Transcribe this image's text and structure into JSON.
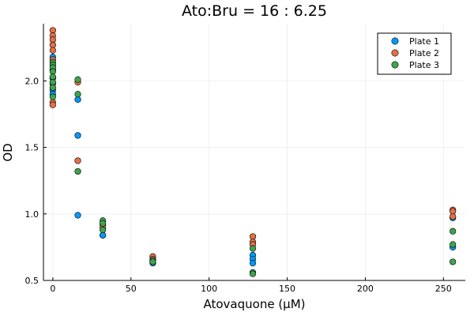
{
  "chart_data": {
    "type": "scatter",
    "title": "Ato:Bru = 16 : 6.25",
    "xlabel": "Atovaquone (µM)",
    "ylabel": "OD",
    "xlim": [
      -6,
      264
    ],
    "ylim": [
      0.5,
      2.43
    ],
    "xticks": [
      0,
      50,
      100,
      150,
      200,
      250
    ],
    "xtick_labels": [
      "0",
      "50",
      "100",
      "150",
      "200",
      "250"
    ],
    "yticks": [
      0.5,
      1.0,
      1.5,
      2.0
    ],
    "ytick_labels": [
      "0.5",
      "1.0",
      "1.5",
      "2.0"
    ],
    "grid": true,
    "legend_position": "top-right",
    "series": [
      {
        "name": "Plate 1",
        "color": "#009AFA",
        "points": [
          [
            0,
            2.18
          ],
          [
            0,
            2.08
          ],
          [
            0,
            2.02
          ],
          [
            0,
            1.98
          ],
          [
            0,
            1.93
          ],
          [
            0,
            1.9
          ],
          [
            16,
            1.86
          ],
          [
            16,
            1.59
          ],
          [
            16,
            0.99
          ],
          [
            32,
            0.84
          ],
          [
            32,
            0.84
          ],
          [
            64,
            0.63
          ],
          [
            64,
            0.64
          ],
          [
            128,
            0.69
          ],
          [
            128,
            0.66
          ],
          [
            128,
            0.63
          ],
          [
            256,
            0.97
          ],
          [
            256,
            0.75
          ]
        ]
      },
      {
        "name": "Plate 2",
        "color": "#E36F47",
        "points": [
          [
            0,
            2.38
          ],
          [
            0,
            2.34
          ],
          [
            0,
            2.31
          ],
          [
            0,
            2.27
          ],
          [
            0,
            2.23
          ],
          [
            0,
            2.16
          ],
          [
            0,
            1.84
          ],
          [
            0,
            1.82
          ],
          [
            16,
            1.99
          ],
          [
            16,
            1.4
          ],
          [
            32,
            0.92
          ],
          [
            32,
            0.9
          ],
          [
            64,
            0.68
          ],
          [
            64,
            0.66
          ],
          [
            128,
            0.83
          ],
          [
            128,
            0.79
          ],
          [
            128,
            0.77
          ],
          [
            256,
            1.03
          ],
          [
            256,
            1.02
          ],
          [
            256,
            0.98
          ]
        ]
      },
      {
        "name": "Plate 3",
        "color": "#3EA44E",
        "points": [
          [
            0,
            2.14
          ],
          [
            0,
            2.12
          ],
          [
            0,
            2.1
          ],
          [
            0,
            2.07
          ],
          [
            0,
            2.03
          ],
          [
            0,
            1.99
          ],
          [
            0,
            1.95
          ],
          [
            0,
            1.88
          ],
          [
            16,
            2.01
          ],
          [
            16,
            1.9
          ],
          [
            16,
            1.32
          ],
          [
            32,
            0.95
          ],
          [
            32,
            0.93
          ],
          [
            32,
            0.88
          ],
          [
            64,
            0.65
          ],
          [
            64,
            0.64
          ],
          [
            128,
            0.74
          ],
          [
            128,
            0.56
          ],
          [
            128,
            0.55
          ],
          [
            256,
            0.87
          ],
          [
            256,
            0.77
          ],
          [
            256,
            0.64
          ]
        ]
      }
    ]
  }
}
